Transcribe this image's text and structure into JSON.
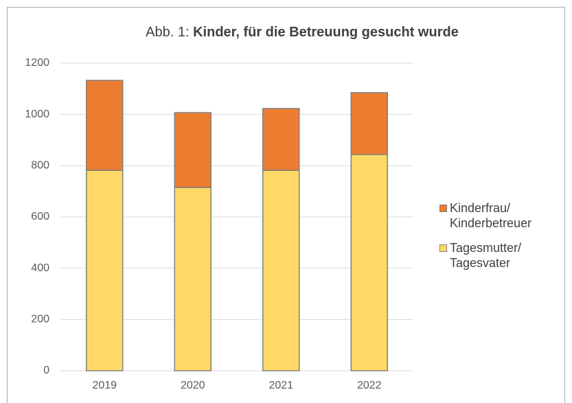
{
  "chart_data": {
    "type": "stacked_bar",
    "title": [
      "Abb. 1:",
      "Kinder, für die Betreuung gesucht wurde"
    ],
    "categories": [
      "2019",
      "2020",
      "2021",
      "2022"
    ],
    "series": [
      {
        "name": "Tagesmutter/ Tagesvater",
        "color": "#FFD966",
        "values": [
          782,
          715,
          782,
          844
        ]
      },
      {
        "name": "Kinderfrau/ Kinderbetreuer",
        "color": "#ED7D31",
        "values": [
          351,
          292,
          241,
          241
        ]
      }
    ],
    "ylim": [
      0,
      1200
    ],
    "yticks": [
      0,
      200,
      400,
      600,
      800,
      1000,
      1200
    ],
    "grid": true,
    "legend": "right"
  }
}
